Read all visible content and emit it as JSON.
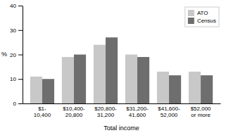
{
  "chart_data": {
    "type": "bar",
    "categories": [
      "$1-\n10,400",
      "$10,400-\n20,800",
      "$20,800-\n31,200",
      "$31,200-\n41,600",
      "$41,600-\n52,000",
      "$52,000\nor more"
    ],
    "series": [
      {
        "name": "ATO",
        "color": "#c8c8c8",
        "values": [
          11,
          19,
          24,
          20,
          13,
          13
        ]
      },
      {
        "name": "Census",
        "color": "#6e6e6e",
        "values": [
          10,
          20,
          27,
          19,
          11.5,
          11.5
        ]
      }
    ],
    "xlabel": "Total income",
    "ylabel": "%",
    "ylim": [
      0,
      40
    ],
    "yticks": [
      0,
      10,
      20,
      30,
      40
    ],
    "grid": false,
    "legend": "upper right"
  }
}
